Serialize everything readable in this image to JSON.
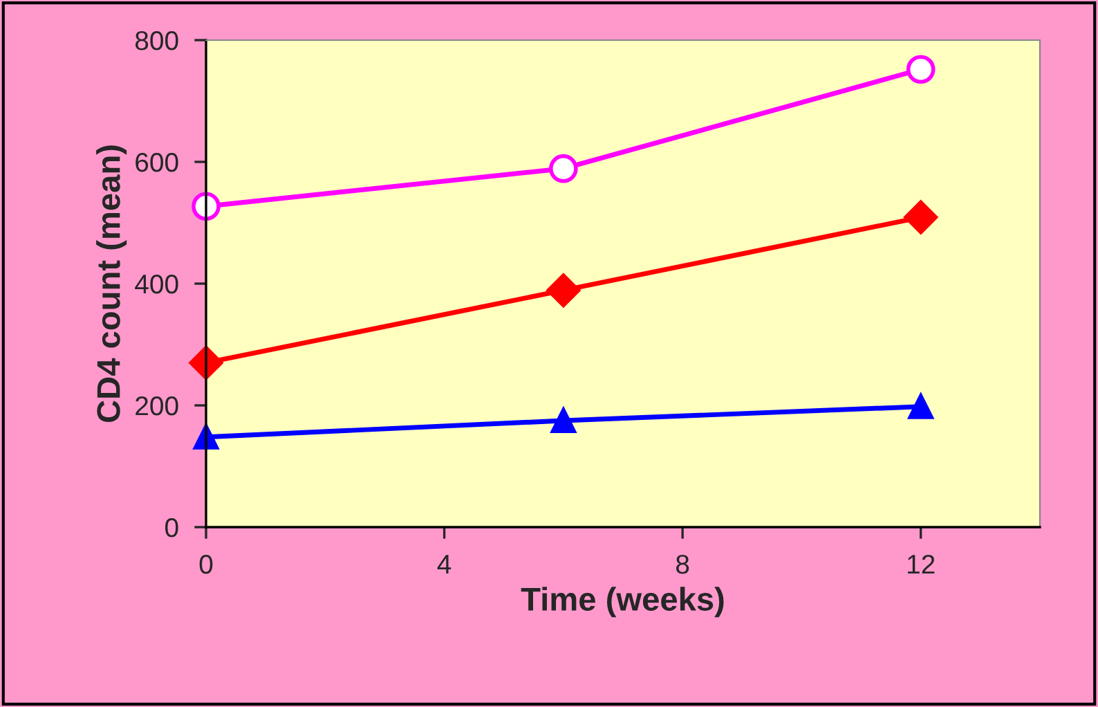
{
  "chart_data": {
    "type": "line",
    "xlabel": "Time (weeks)",
    "ylabel": "CD4 count (mean)",
    "x": [
      0,
      6,
      12
    ],
    "xlim": [
      0,
      14
    ],
    "xticks": [
      0,
      4,
      8,
      12
    ],
    "ylim": [
      0,
      800
    ],
    "yticks": [
      0,
      200,
      400,
      600,
      800
    ],
    "grid": false,
    "legend": false,
    "series": [
      {
        "color": "#ff00ff",
        "values": [
          527,
          589,
          752
        ],
        "marker": "circle"
      },
      {
        "color": "#ff0000",
        "values": [
          270,
          389,
          509
        ],
        "marker": "diamond"
      },
      {
        "color": "#0000ff",
        "values": [
          148,
          175,
          198
        ],
        "marker": "triangle"
      }
    ]
  }
}
